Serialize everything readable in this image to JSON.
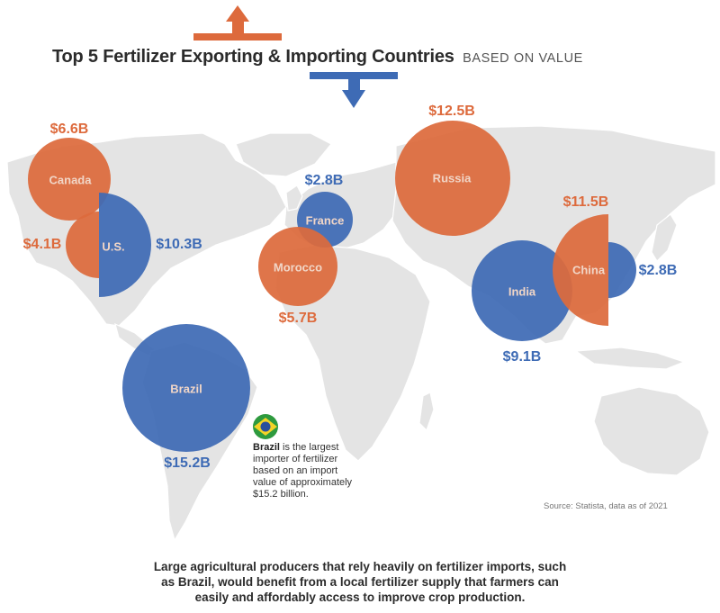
{
  "title": {
    "main": "Top 5 Fertilizer Exporting & Importing Countries",
    "sub": "BASED ON VALUE"
  },
  "colors": {
    "export": "#dd6a3c",
    "import": "#3e6bb5",
    "land": "#e4e4e4",
    "label": "#f1d6c7"
  },
  "legend_icons": {
    "export": "arrow-up-icon",
    "import": "arrow-down-icon"
  },
  "countries": [
    {
      "name": "Canada",
      "type": "export",
      "value": 6.6,
      "value_label": "$6.6B"
    },
    {
      "name": "U.S.",
      "type": "export",
      "value": 4.1,
      "value_label": "$4.1B"
    },
    {
      "name": "U.S.",
      "type": "import",
      "value": 10.3,
      "value_label": "$10.3B"
    },
    {
      "name": "France",
      "type": "import",
      "value": 2.8,
      "value_label": "$2.8B"
    },
    {
      "name": "Morocco",
      "type": "export",
      "value": 5.7,
      "value_label": "$5.7B"
    },
    {
      "name": "Russia",
      "type": "export",
      "value": 12.5,
      "value_label": "$12.5B"
    },
    {
      "name": "India",
      "type": "import",
      "value": 9.1,
      "value_label": "$9.1B"
    },
    {
      "name": "China",
      "type": "export",
      "value": 11.5,
      "value_label": "$11.5B"
    },
    {
      "name": "China",
      "type": "import",
      "value": 2.8,
      "value_label": "$2.8B"
    },
    {
      "name": "Brazil",
      "type": "import",
      "value": 15.2,
      "value_label": "$15.2B"
    }
  ],
  "note": {
    "bold": "Brazil",
    "line1": "is the largest",
    "line2": "importer of fertilizer",
    "line3": "based on an import",
    "line4": "value of approximately",
    "line5": "$15.2 billion.",
    "flag_icon": "brazil-flag-icon"
  },
  "source": "Source: Statista, data as of 2021",
  "caption": {
    "line1": "Large agricultural producers that rely heavily on fertilizer imports, such",
    "line2": "as Brazil, would benefit from a local fertilizer supply that farmers can",
    "line3": "easily and affordably access to improve crop production."
  }
}
